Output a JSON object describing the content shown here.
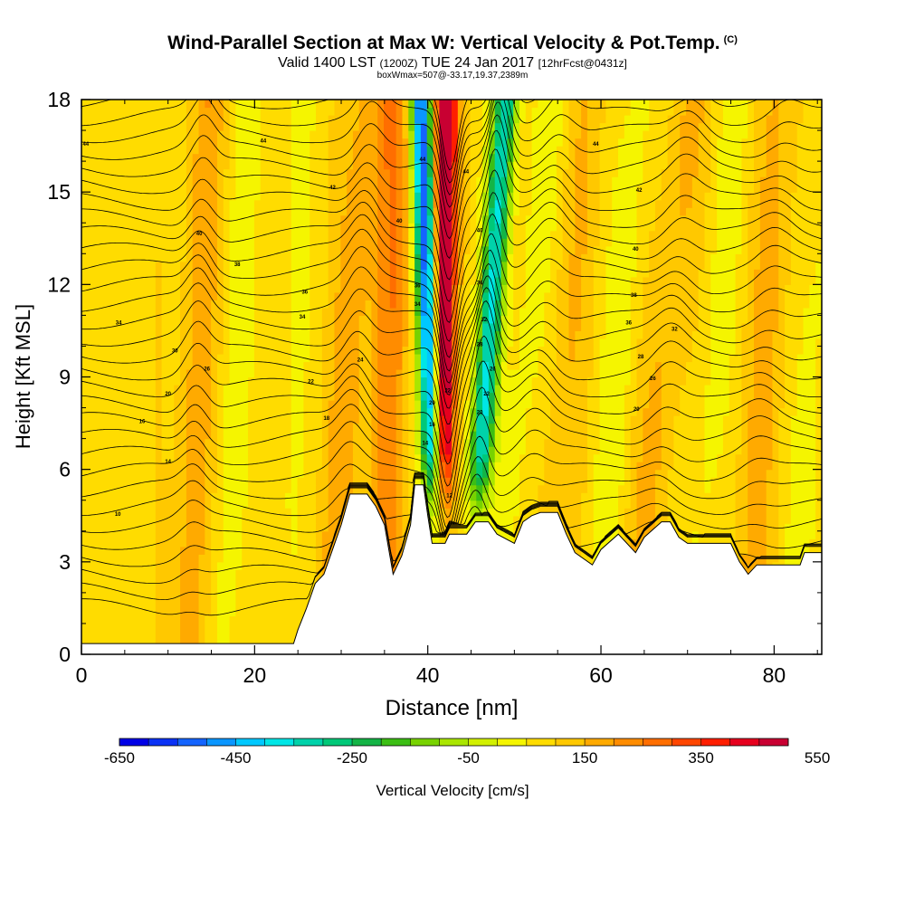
{
  "chart_data": {
    "type": "heatmap",
    "title": "Wind-Parallel Section at Max W: Vertical Velocity & Pot.Temp.",
    "title_tag": "(C)",
    "subtitle_main": "Valid 1400 LST",
    "subtitle_utc": "(1200Z)",
    "subtitle_date": "TUE 24 Jan 2017",
    "subtitle_fcst": "[12hrFcst@0431z]",
    "subline": "boxWmax=507@-33.17,19.37,2389m",
    "xlabel": "Distance [nm]",
    "ylabel": "Height [Kft MSL]",
    "xlim": [
      0,
      85.5
    ],
    "ylim": [
      0,
      18
    ],
    "x_ticks": [
      "0",
      "20",
      "40",
      "60",
      "80"
    ],
    "y_ticks": [
      "0",
      "3",
      "6",
      "9",
      "12",
      "15",
      "18"
    ],
    "colorbar": {
      "label": "Vertical Velocity [cm/s]",
      "tick_labels": [
        "-650",
        "-450",
        "-250",
        "-50",
        "150",
        "350",
        "550"
      ],
      "colors": [
        "#0000e6",
        "#0b32f5",
        "#1464ff",
        "#0a96ff",
        "#00c8ff",
        "#00e6e6",
        "#00d2aa",
        "#00c878",
        "#14b446",
        "#3cbe14",
        "#78d200",
        "#aae600",
        "#d2f000",
        "#f5f500",
        "#ffdc00",
        "#ffc800",
        "#ffaa00",
        "#ff8c00",
        "#ff6e00",
        "#ff4600",
        "#ff1e00",
        "#e6001e",
        "#c80032"
      ]
    },
    "updraft_peak_cms": 507,
    "terrain_profile": [
      [
        0,
        0.35
      ],
      [
        24.5,
        0.35
      ],
      [
        25,
        0.8
      ],
      [
        26,
        1.5
      ],
      [
        27,
        2.3
      ],
      [
        28,
        2.6
      ],
      [
        29,
        3.4
      ],
      [
        30,
        4.2
      ],
      [
        31,
        5.2
      ],
      [
        33,
        5.2
      ],
      [
        34,
        4.8
      ],
      [
        35,
        4.2
      ],
      [
        35.5,
        3.4
      ],
      [
        36,
        2.6
      ],
      [
        37,
        3.2
      ],
      [
        38,
        4.2
      ],
      [
        38.5,
        5.5
      ],
      [
        39.5,
        5.5
      ],
      [
        40,
        4.5
      ],
      [
        40.5,
        3.6
      ],
      [
        42,
        3.6
      ],
      [
        42.5,
        3.9
      ],
      [
        44.5,
        3.9
      ],
      [
        45.5,
        4.3
      ],
      [
        47,
        4.3
      ],
      [
        48,
        3.9
      ],
      [
        50,
        3.6
      ],
      [
        51,
        4.3
      ],
      [
        52,
        4.5
      ],
      [
        53,
        4.6
      ],
      [
        55,
        4.6
      ],
      [
        56,
        3.9
      ],
      [
        57,
        3.3
      ],
      [
        59,
        2.9
      ],
      [
        60,
        3.4
      ],
      [
        62,
        3.9
      ],
      [
        64,
        3.3
      ],
      [
        65,
        3.8
      ],
      [
        67,
        4.3
      ],
      [
        68,
        4.3
      ],
      [
        69,
        3.8
      ],
      [
        70,
        3.6
      ],
      [
        75,
        3.6
      ],
      [
        76,
        3.0
      ],
      [
        77,
        2.6
      ],
      [
        78,
        2.9
      ],
      [
        83,
        2.9
      ],
      [
        83.5,
        3.3
      ],
      [
        85.5,
        3.3
      ]
    ],
    "isentrope_labels": [
      {
        "x": 0.5,
        "y": 16.5,
        "text": "44"
      },
      {
        "x": 21,
        "y": 16.6,
        "text": "44"
      },
      {
        "x": 29,
        "y": 15.1,
        "text": "42"
      },
      {
        "x": 13.6,
        "y": 13.6,
        "text": "40"
      },
      {
        "x": 18,
        "y": 12.6,
        "text": "38"
      },
      {
        "x": 25.8,
        "y": 11.7,
        "text": "36"
      },
      {
        "x": 25.5,
        "y": 10.9,
        "text": "34"
      },
      {
        "x": 4.3,
        "y": 10.7,
        "text": "34"
      },
      {
        "x": 10.8,
        "y": 9.8,
        "text": "30"
      },
      {
        "x": 14.5,
        "y": 9.2,
        "text": "26"
      },
      {
        "x": 26.5,
        "y": 8.8,
        "text": "22"
      },
      {
        "x": 10,
        "y": 8.4,
        "text": "20"
      },
      {
        "x": 28.3,
        "y": 7.6,
        "text": "18"
      },
      {
        "x": 7,
        "y": 7.5,
        "text": "16"
      },
      {
        "x": 10,
        "y": 6.2,
        "text": "14"
      },
      {
        "x": 4.2,
        "y": 4.5,
        "text": "10"
      },
      {
        "x": 32.2,
        "y": 9.5,
        "text": "24"
      },
      {
        "x": 36.7,
        "y": 14.0,
        "text": "40"
      },
      {
        "x": 39.4,
        "y": 16.0,
        "text": "44"
      },
      {
        "x": 44.4,
        "y": 15.6,
        "text": "44"
      },
      {
        "x": 46,
        "y": 13.7,
        "text": "40"
      },
      {
        "x": 46,
        "y": 12.0,
        "text": "36"
      },
      {
        "x": 38.8,
        "y": 11.9,
        "text": "36"
      },
      {
        "x": 38.8,
        "y": 11.3,
        "text": "34"
      },
      {
        "x": 46.5,
        "y": 10.8,
        "text": "32"
      },
      {
        "x": 46,
        "y": 10.0,
        "text": "28"
      },
      {
        "x": 47.5,
        "y": 9.2,
        "text": "26"
      },
      {
        "x": 46.8,
        "y": 8.4,
        "text": "22"
      },
      {
        "x": 46,
        "y": 7.8,
        "text": "20"
      },
      {
        "x": 40.5,
        "y": 8.1,
        "text": "20"
      },
      {
        "x": 40.5,
        "y": 7.4,
        "text": "16"
      },
      {
        "x": 39.7,
        "y": 6.8,
        "text": "14"
      },
      {
        "x": 42.3,
        "y": 8.5,
        "text": "22"
      },
      {
        "x": 42.5,
        "y": 5.1,
        "text": "12"
      },
      {
        "x": 59.4,
        "y": 16.5,
        "text": "44"
      },
      {
        "x": 64.4,
        "y": 15.0,
        "text": "42"
      },
      {
        "x": 64,
        "y": 13.1,
        "text": "40"
      },
      {
        "x": 63.8,
        "y": 11.6,
        "text": "38"
      },
      {
        "x": 63.2,
        "y": 10.7,
        "text": "36"
      },
      {
        "x": 68.5,
        "y": 10.5,
        "text": "32"
      },
      {
        "x": 64.6,
        "y": 9.6,
        "text": "28"
      },
      {
        "x": 66,
        "y": 8.9,
        "text": "26"
      },
      {
        "x": 64.1,
        "y": 7.9,
        "text": "20"
      }
    ]
  }
}
